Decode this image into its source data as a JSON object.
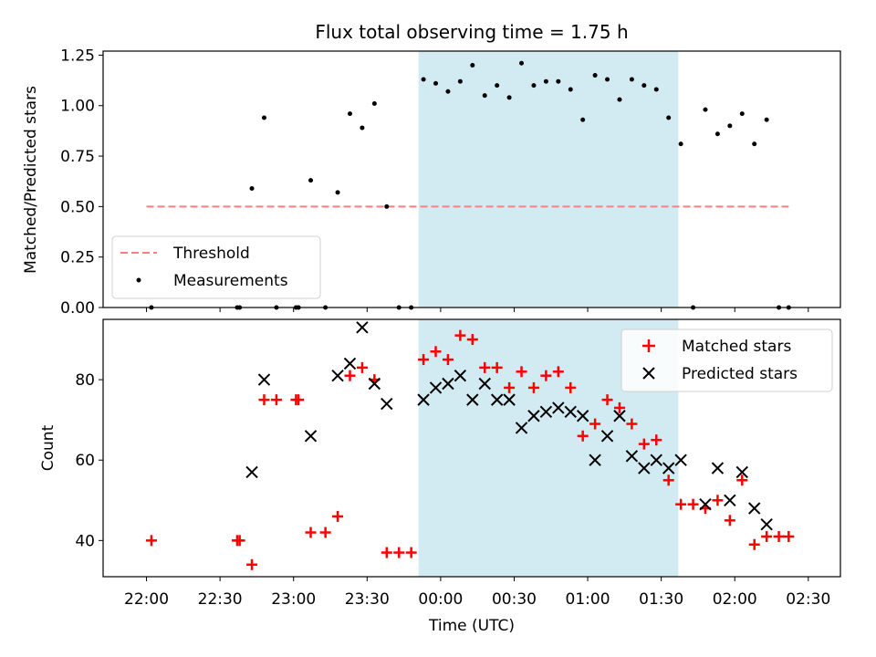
{
  "chart_data": [
    {
      "type": "scatter",
      "title": "Flux total observing time = 1.75 h",
      "xlabel": "",
      "ylabel": "Matched/Predicted stars",
      "ylim": [
        0,
        1.27
      ],
      "yticks": [
        "0.00",
        "0.25",
        "0.50",
        "0.75",
        "1.00",
        "1.25"
      ],
      "grid": false,
      "legend_position": "lower-left",
      "shaded_span": [
        "23:51",
        "01:37"
      ],
      "shaded_color": "#add8e6",
      "threshold": {
        "name": "Threshold",
        "value": 0.5,
        "x_range": [
          "22:00",
          "02:22"
        ],
        "color": "#ff7f7f"
      },
      "series": [
        {
          "name": "Measurements",
          "color": "#000000",
          "points": [
            [
              "22:02",
              0.0
            ],
            [
              "22:37",
              0.0
            ],
            [
              "22:38",
              0.0
            ],
            [
              "22:43",
              0.59
            ],
            [
              "22:48",
              0.94
            ],
            [
              "22:53",
              0.0
            ],
            [
              "23:01",
              0.0
            ],
            [
              "23:02",
              0.0
            ],
            [
              "23:07",
              0.63
            ],
            [
              "23:13",
              0.0
            ],
            [
              "23:18",
              0.57
            ],
            [
              "23:23",
              0.96
            ],
            [
              "23:28",
              0.89
            ],
            [
              "23:33",
              1.01
            ],
            [
              "23:38",
              0.5
            ],
            [
              "23:43",
              0.0
            ],
            [
              "23:48",
              0.0
            ],
            [
              "23:53",
              1.13
            ],
            [
              "23:58",
              1.11
            ],
            [
              "00:03",
              1.07
            ],
            [
              "00:08",
              1.12
            ],
            [
              "00:13",
              1.2
            ],
            [
              "00:18",
              1.05
            ],
            [
              "00:23",
              1.1
            ],
            [
              "00:28",
              1.04
            ],
            [
              "00:33",
              1.21
            ],
            [
              "00:38",
              1.1
            ],
            [
              "00:43",
              1.12
            ],
            [
              "00:48",
              1.12
            ],
            [
              "00:53",
              1.08
            ],
            [
              "00:58",
              0.93
            ],
            [
              "01:03",
              1.15
            ],
            [
              "01:08",
              1.13
            ],
            [
              "01:13",
              1.03
            ],
            [
              "01:18",
              1.13
            ],
            [
              "01:23",
              1.1
            ],
            [
              "01:28",
              1.08
            ],
            [
              "01:33",
              0.94
            ],
            [
              "01:38",
              0.81
            ],
            [
              "01:43",
              0.0
            ],
            [
              "01:48",
              0.98
            ],
            [
              "01:53",
              0.86
            ],
            [
              "01:58",
              0.9
            ],
            [
              "02:03",
              0.96
            ],
            [
              "02:08",
              0.81
            ],
            [
              "02:13",
              0.93
            ],
            [
              "02:18",
              0.0
            ],
            [
              "02:22",
              0.0
            ]
          ]
        }
      ]
    },
    {
      "type": "scatter",
      "title": "",
      "xlabel": "Time (UTC)",
      "ylabel": "Count",
      "ylim": [
        31,
        95
      ],
      "yticks": [
        "40",
        "60",
        "80"
      ],
      "xticks": [
        "22:00",
        "22:30",
        "23:00",
        "23:30",
        "00:00",
        "00:30",
        "01:00",
        "01:30",
        "02:00",
        "02:30"
      ],
      "grid": false,
      "legend_position": "top-right",
      "shaded_span": [
        "23:51",
        "01:37"
      ],
      "series": [
        {
          "name": "Matched stars",
          "marker": "plus",
          "color": "#ff0000",
          "points": [
            [
              "22:02",
              40
            ],
            [
              "22:37",
              40
            ],
            [
              "22:38",
              40
            ],
            [
              "22:43",
              34
            ],
            [
              "22:48",
              75
            ],
            [
              "22:53",
              75
            ],
            [
              "23:01",
              75
            ],
            [
              "23:02",
              75
            ],
            [
              "23:07",
              42
            ],
            [
              "23:13",
              42
            ],
            [
              "23:18",
              46
            ],
            [
              "23:23",
              81
            ],
            [
              "23:28",
              83
            ],
            [
              "23:33",
              80
            ],
            [
              "23:38",
              37
            ],
            [
              "23:43",
              37
            ],
            [
              "23:48",
              37
            ],
            [
              "23:53",
              85
            ],
            [
              "23:58",
              87
            ],
            [
              "00:03",
              85
            ],
            [
              "00:08",
              91
            ],
            [
              "00:13",
              90
            ],
            [
              "00:18",
              83
            ],
            [
              "00:23",
              83
            ],
            [
              "00:28",
              78
            ],
            [
              "00:33",
              82
            ],
            [
              "00:38",
              78
            ],
            [
              "00:43",
              81
            ],
            [
              "00:48",
              82
            ],
            [
              "00:53",
              78
            ],
            [
              "00:58",
              66
            ],
            [
              "01:03",
              69
            ],
            [
              "01:08",
              75
            ],
            [
              "01:13",
              73
            ],
            [
              "01:18",
              69
            ],
            [
              "01:23",
              64
            ],
            [
              "01:28",
              65
            ],
            [
              "01:33",
              55
            ],
            [
              "01:38",
              49
            ],
            [
              "01:43",
              49
            ],
            [
              "01:48",
              48
            ],
            [
              "01:53",
              50
            ],
            [
              "01:58",
              45
            ],
            [
              "02:03",
              55
            ],
            [
              "02:08",
              39
            ],
            [
              "02:13",
              41
            ],
            [
              "02:18",
              41
            ],
            [
              "02:22",
              41
            ]
          ]
        },
        {
          "name": "Predicted stars",
          "marker": "x",
          "color": "#000000",
          "points": [
            [
              "22:43",
              57
            ],
            [
              "22:48",
              80
            ],
            [
              "23:07",
              66
            ],
            [
              "23:18",
              81
            ],
            [
              "23:23",
              84
            ],
            [
              "23:28",
              93
            ],
            [
              "23:33",
              79
            ],
            [
              "23:38",
              74
            ],
            [
              "23:53",
              75
            ],
            [
              "23:58",
              78
            ],
            [
              "00:03",
              79
            ],
            [
              "00:08",
              81
            ],
            [
              "00:13",
              75
            ],
            [
              "00:18",
              79
            ],
            [
              "00:23",
              75
            ],
            [
              "00:28",
              75
            ],
            [
              "00:33",
              68
            ],
            [
              "00:38",
              71
            ],
            [
              "00:43",
              72
            ],
            [
              "00:48",
              73
            ],
            [
              "00:53",
              72
            ],
            [
              "00:58",
              71
            ],
            [
              "01:03",
              60
            ],
            [
              "01:08",
              66
            ],
            [
              "01:13",
              71
            ],
            [
              "01:18",
              61
            ],
            [
              "01:23",
              58
            ],
            [
              "01:28",
              60
            ],
            [
              "01:33",
              58
            ],
            [
              "01:38",
              60
            ],
            [
              "01:48",
              49
            ],
            [
              "01:53",
              58
            ],
            [
              "01:58",
              50
            ],
            [
              "02:03",
              57
            ],
            [
              "02:08",
              48
            ],
            [
              "02:13",
              44
            ]
          ]
        }
      ]
    }
  ]
}
